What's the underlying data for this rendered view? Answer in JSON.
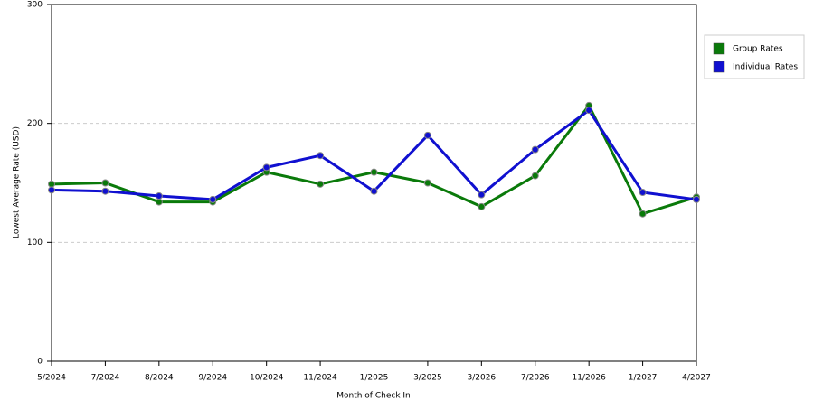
{
  "chart_data": {
    "type": "line",
    "x_label": "Month of Check In",
    "y_label": "Lowest Average Rate (USD)",
    "categories": [
      "5/2024",
      "7/2024",
      "8/2024",
      "9/2024",
      "10/2024",
      "11/2024",
      "1/2025",
      "3/2025",
      "3/2026",
      "7/2026",
      "11/2026",
      "1/2027",
      "4/2027"
    ],
    "series": [
      {
        "name": "Group Rates",
        "color": "#0a7a0a",
        "values": [
          149,
          150,
          134,
          134,
          159,
          149,
          159,
          150,
          130,
          156,
          215,
          124,
          138
        ]
      },
      {
        "name": "Individual Rates",
        "color": "#1010d0",
        "values": [
          144,
          143,
          139,
          136,
          163,
          173,
          143,
          190,
          140,
          178,
          211,
          142,
          136
        ]
      }
    ],
    "ylim": [
      0,
      300
    ],
    "yticks": [
      0,
      100,
      200,
      300
    ],
    "grid": true,
    "legend": "right"
  }
}
